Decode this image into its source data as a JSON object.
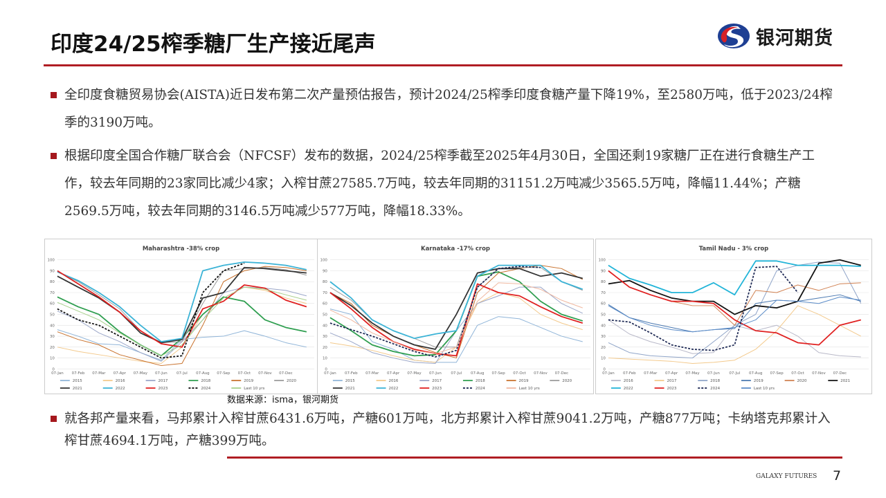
{
  "header": {
    "title": "印度24/25榨季糖厂生产接近尾声",
    "logo_text": "银河期货"
  },
  "bullets": [
    "全印度食糖贸易协会(AISTA)近日发布第二次产量预估报告，预计2024/25榨季印度食糖产量下降19%，至2580万吨，低于2023/24榨季的3190万吨。",
    "根据印度全国合作糖厂联合会（NFCSF）发布的数据，2024/25榨季截至2025年4月30日，全国还剩19家糖厂正在进行食糖生产工作，较去年同期的23家同比减少4家；入榨甘蔗27585.7万吨，较去年同期的31151.2万吨减少3565.5万吨，降幅11.44%；产糖2569.5万吨，较去年同期的3146.5万吨减少577万吨，降幅18.33%。",
    "就各邦产量来看，马邦累计入榨甘蔗6431.6万吨，产糖601万吨，北方邦累计入榨甘蔗9041.2万吨，产糖877万吨；卡纳塔克邦累计入榨甘蔗4694.1万吨，产糖399万吨。"
  ],
  "source": "数据来源：isma，银河期货",
  "footer": {
    "company": "GALAXY FUTURES",
    "page": "7"
  },
  "colors": {
    "accent": "#b01d23"
  },
  "chart_data": [
    {
      "type": "line",
      "title": "Maharashtra -38% crop",
      "ylim": [
        0,
        100
      ],
      "yticks": [
        0,
        10,
        20,
        30,
        40,
        50,
        60,
        70,
        80,
        90,
        100
      ],
      "x": [
        "07-Jan",
        "07-Feb",
        "07-Mar",
        "07-Apr",
        "07-May",
        "07-Jun",
        "07-Jul",
        "07-Aug",
        "07-Sep",
        "07-Oct",
        "07-Nov",
        "07-Dec",
        ""
      ],
      "series": [
        {
          "name": "2015",
          "color": "#8fb4d8",
          "values": [
            36,
            30,
            23,
            22,
            15,
            8,
            27,
            29,
            30,
            35,
            30,
            24,
            20
          ]
        },
        {
          "name": "2016",
          "color": "#f3c98b",
          "values": [
            20,
            16,
            13,
            10,
            7,
            5,
            20,
            50,
            65,
            75,
            72,
            65,
            60
          ]
        },
        {
          "name": "2017",
          "color": "#9aa6c8",
          "values": [
            53,
            45,
            33,
            25,
            15,
            7,
            25,
            45,
            70,
            75,
            74,
            72,
            67
          ]
        },
        {
          "name": "2018",
          "color": "#2e9e4f",
          "values": [
            66,
            57,
            50,
            34,
            22,
            12,
            28,
            50,
            66,
            62,
            45,
            38,
            34
          ]
        },
        {
          "name": "2019",
          "color": "#c8702a",
          "values": [
            34,
            27,
            22,
            13,
            8,
            3,
            5,
            40,
            80,
            90,
            94,
            93,
            90
          ]
        },
        {
          "name": "2020",
          "color": "#9a9a9a",
          "values": [
            89,
            80,
            68,
            55,
            35,
            24,
            25,
            60,
            90,
            92,
            93,
            91,
            86
          ]
        },
        {
          "name": "2021",
          "color": "#333333",
          "values": [
            85,
            75,
            65,
            52,
            33,
            24,
            27,
            65,
            70,
            93,
            92,
            90,
            88
          ]
        },
        {
          "name": "2022",
          "color": "#3bb3d6",
          "values": [
            89,
            81,
            70,
            57,
            40,
            25,
            28,
            90,
            95,
            98,
            97,
            95,
            91
          ]
        },
        {
          "name": "2023",
          "color": "#e02020",
          "values": [
            90,
            78,
            66,
            52,
            35,
            23,
            20,
            55,
            62,
            77,
            74,
            63,
            57
          ]
        },
        {
          "name": "2024",
          "color": "#111111",
          "dashed": true,
          "values": [
            55,
            45,
            40,
            30,
            20,
            10,
            12,
            70,
            90,
            97,
            null,
            null,
            null
          ]
        },
        {
          "name": "Last 10 yrs",
          "color": "#a6cf8a",
          "values": [
            61,
            53,
            45,
            33,
            22,
            12,
            22,
            45,
            65,
            75,
            73,
            68,
            63
          ]
        }
      ]
    },
    {
      "type": "line",
      "title": "Karnataka -17% crop",
      "ylim": [
        0,
        100
      ],
      "yticks": [
        0,
        10,
        20,
        30,
        40,
        50,
        60,
        70,
        80,
        90,
        100
      ],
      "x": [
        "07-Jan",
        "07-Feb",
        "07-Mar",
        "07-Apr",
        "07-May",
        "07-Jun",
        "07-Jul",
        "07-Aug",
        "07-Sep",
        "07-Oct",
        "07-Nov",
        "07-Dec",
        ""
      ],
      "series": [
        {
          "name": "2015",
          "color": "#8fb4d8",
          "values": [
            55,
            50,
            25,
            18,
            8,
            6,
            6,
            40,
            48,
            46,
            38,
            30,
            25
          ]
        },
        {
          "name": "2016",
          "color": "#f3c98b",
          "values": [
            24,
            21,
            17,
            12,
            8,
            6,
            20,
            60,
            70,
            65,
            50,
            42,
            36
          ]
        },
        {
          "name": "2017",
          "color": "#9aa6c8",
          "values": [
            33,
            25,
            15,
            10,
            6,
            5,
            35,
            60,
            67,
            75,
            75,
            60,
            51
          ]
        },
        {
          "name": "2018",
          "color": "#2e9e4f",
          "values": [
            47,
            35,
            22,
            16,
            12,
            13,
            35,
            85,
            89,
            80,
            62,
            50,
            44
          ]
        },
        {
          "name": "2019",
          "color": "#c8702a",
          "values": [
            70,
            60,
            40,
            30,
            22,
            15,
            10,
            70,
            88,
            92,
            95,
            92,
            82
          ]
        },
        {
          "name": "2020",
          "color": "#9a9a9a",
          "values": [
            75,
            63,
            45,
            35,
            28,
            20,
            20,
            75,
            92,
            93,
            93,
            80,
            72
          ]
        },
        {
          "name": "2021",
          "color": "#333333",
          "values": [
            70,
            58,
            42,
            30,
            22,
            18,
            50,
            88,
            92,
            92,
            85,
            88,
            83
          ]
        },
        {
          "name": "2022",
          "color": "#3bb3d6",
          "values": [
            80,
            65,
            45,
            35,
            28,
            32,
            35,
            85,
            95,
            95,
            95,
            80,
            73
          ]
        },
        {
          "name": "2023",
          "color": "#e02020",
          "values": [
            70,
            55,
            38,
            25,
            18,
            14,
            12,
            78,
            70,
            67,
            57,
            48,
            42
          ]
        },
        {
          "name": "2024",
          "color": "#1f2a55",
          "dashed": true,
          "values": [
            42,
            36,
            30,
            23,
            16,
            11,
            17,
            75,
            92,
            94,
            93,
            null,
            null
          ]
        },
        {
          "name": "Last 10 yrs",
          "color": "#f0b8a0",
          "values": [
            54,
            45,
            33,
            25,
            17,
            14,
            20,
            62,
            79,
            78,
            73,
            63,
            56
          ]
        }
      ]
    },
    {
      "type": "line",
      "title": "Tamil Nadu - 3% crop",
      "ylim": [
        0,
        100
      ],
      "yticks": [
        0,
        10,
        20,
        30,
        40,
        50,
        60,
        70,
        80,
        90,
        100
      ],
      "x": [
        "07-Jan",
        "07-Feb",
        "07-Mar",
        "07-Apr",
        "07-May",
        "07-Jun",
        "07-Jul",
        "07-Aug",
        "07-Sep",
        "07-Oct",
        "07-Nov",
        "07-Dec",
        ""
      ],
      "series": [
        {
          "name": "2016",
          "color": "#b8b8c8",
          "values": [
            45,
            32,
            25,
            20,
            14,
            15,
            40,
            35,
            40,
            30,
            15,
            12,
            11
          ]
        },
        {
          "name": "2017",
          "color": "#f3c98b",
          "values": [
            10,
            9,
            8,
            7,
            5,
            6,
            8,
            18,
            35,
            58,
            50,
            40,
            30
          ]
        },
        {
          "name": "2018",
          "color": "#8fa4c8",
          "values": [
            24,
            15,
            12,
            11,
            10,
            25,
            40,
            50,
            90,
            95,
            98,
            97,
            60
          ]
        },
        {
          "name": "2019",
          "color": "#4a78b0",
          "values": [
            59,
            47,
            42,
            38,
            34,
            36,
            37,
            60,
            63,
            62,
            65,
            68,
            62
          ]
        },
        {
          "name": "2020",
          "color": "#d08050",
          "values": [
            90,
            75,
            68,
            62,
            58,
            58,
            40,
            72,
            70,
            77,
            72,
            78,
            79
          ]
        },
        {
          "name": "2021",
          "color": "#111111",
          "values": [
            78,
            81,
            72,
            65,
            62,
            62,
            50,
            58,
            56,
            62,
            97,
            100,
            95
          ]
        },
        {
          "name": "2022",
          "color": "#21b4d8",
          "values": [
            95,
            83,
            77,
            70,
            70,
            79,
            68,
            99,
            99,
            95,
            95,
            95,
            94
          ]
        },
        {
          "name": "2023",
          "color": "#e02020",
          "values": [
            90,
            75,
            68,
            62,
            62,
            60,
            45,
            35,
            33,
            24,
            22,
            40,
            45
          ]
        },
        {
          "name": "2024",
          "color": "#1f2a55",
          "dashed": true,
          "values": [
            45,
            43,
            33,
            22,
            18,
            17,
            22,
            93,
            94,
            70,
            null,
            null,
            null
          ]
        },
        {
          "name": "Last 10 yrs",
          "color": "#5b8cc8",
          "values": [
            58,
            47,
            40,
            36,
            34,
            36,
            38,
            45,
            63,
            62,
            60,
            66,
            63
          ]
        }
      ]
    }
  ]
}
